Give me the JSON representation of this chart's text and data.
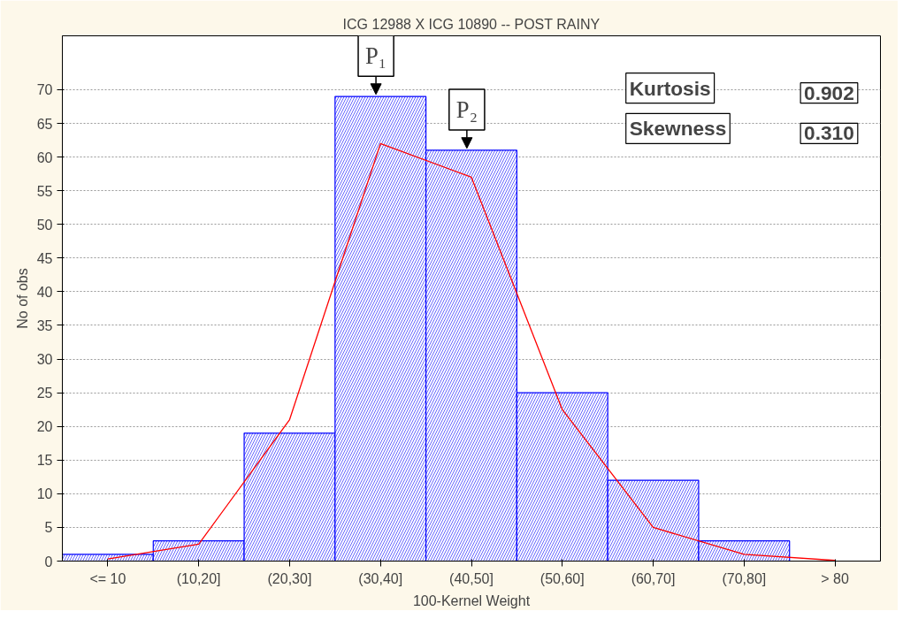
{
  "chart_data": {
    "type": "bar",
    "title": "ICG 12988 X ICG 10890 -- POST RAINY",
    "xlabel": "100-Kernel Weight",
    "ylabel": "No of obs",
    "categories": [
      "<= 10",
      "(10,20]",
      "(20,30]",
      "(30,40]",
      "(40,50]",
      "(50,60]",
      "(60,70]",
      "(70,80]",
      "> 80"
    ],
    "series": [
      {
        "color": "#0000ff",
        "values": [
          1,
          3,
          19,
          69,
          61,
          25,
          12,
          3,
          0
        ]
      },
      {
        "type": "line",
        "color": "#ff0000",
        "values": [
          0.3,
          2.5,
          21,
          62,
          57,
          22.5,
          5,
          1,
          0.1
        ]
      }
    ],
    "ylim": [
      0,
      78
    ],
    "yticks": [
      0,
      5,
      10,
      15,
      20,
      25,
      30,
      35,
      40,
      45,
      50,
      55,
      60,
      65,
      70
    ],
    "grid": "y",
    "annotations": [
      {
        "text": "P₁",
        "x": "(30,40]",
        "y": 69
      },
      {
        "text": "P₂",
        "x": "(40,50]",
        "y": 61
      },
      "Kurtosis",
      "0.902",
      "Skewness",
      "0.310"
    ]
  }
}
